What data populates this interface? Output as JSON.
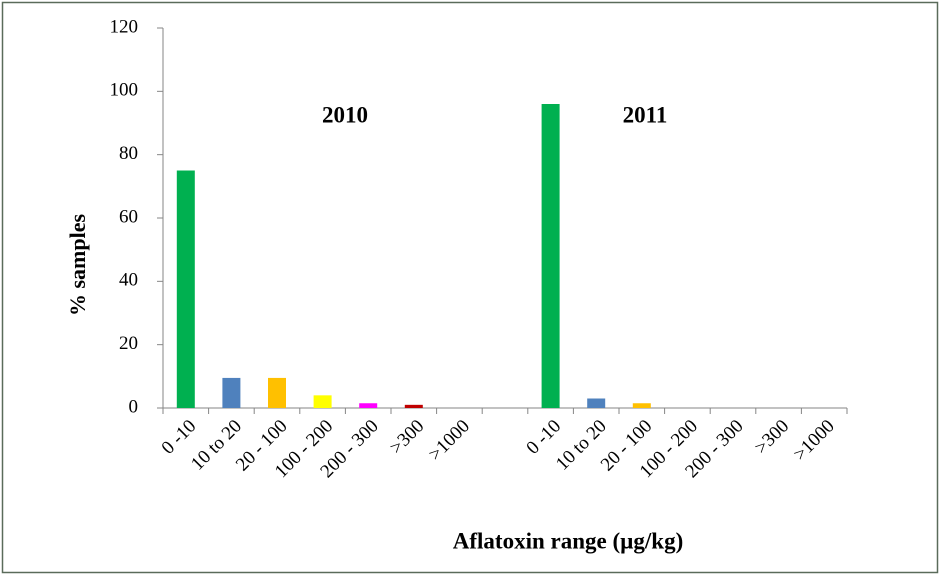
{
  "chart_data": {
    "type": "bar",
    "ylabel": "% samples",
    "xlabel": "Aflatoxin range (µg/kg)",
    "annotations": [
      "2010",
      "2011"
    ],
    "categories": [
      "0 -10",
      "10 to 20",
      "20 - 100",
      "100 - 200",
      "200 - 300",
      ">300",
      ">1000",
      null,
      "0 -10",
      "10 to 20",
      "20 - 100",
      "100 - 200",
      "200 - 300",
      ">300",
      ">1000"
    ],
    "values": [
      75,
      9.5,
      9.5,
      4,
      1.5,
      1,
      0,
      null,
      96,
      3,
      1.5,
      0,
      0,
      0,
      0
    ],
    "colors": [
      "#00b050",
      "#4f81bd",
      "#ffc000",
      "#ffff00",
      "#ff00ff",
      "#c00000",
      "#7f7f7f",
      null,
      "#00b050",
      "#4f81bd",
      "#ffc000",
      "#ffff00",
      "#ff00ff",
      "#c00000",
      "#7f7f7f"
    ],
    "ylim": [
      0,
      120
    ],
    "yticks": [
      0,
      20,
      40,
      60,
      80,
      100,
      120
    ],
    "grid": false
  }
}
